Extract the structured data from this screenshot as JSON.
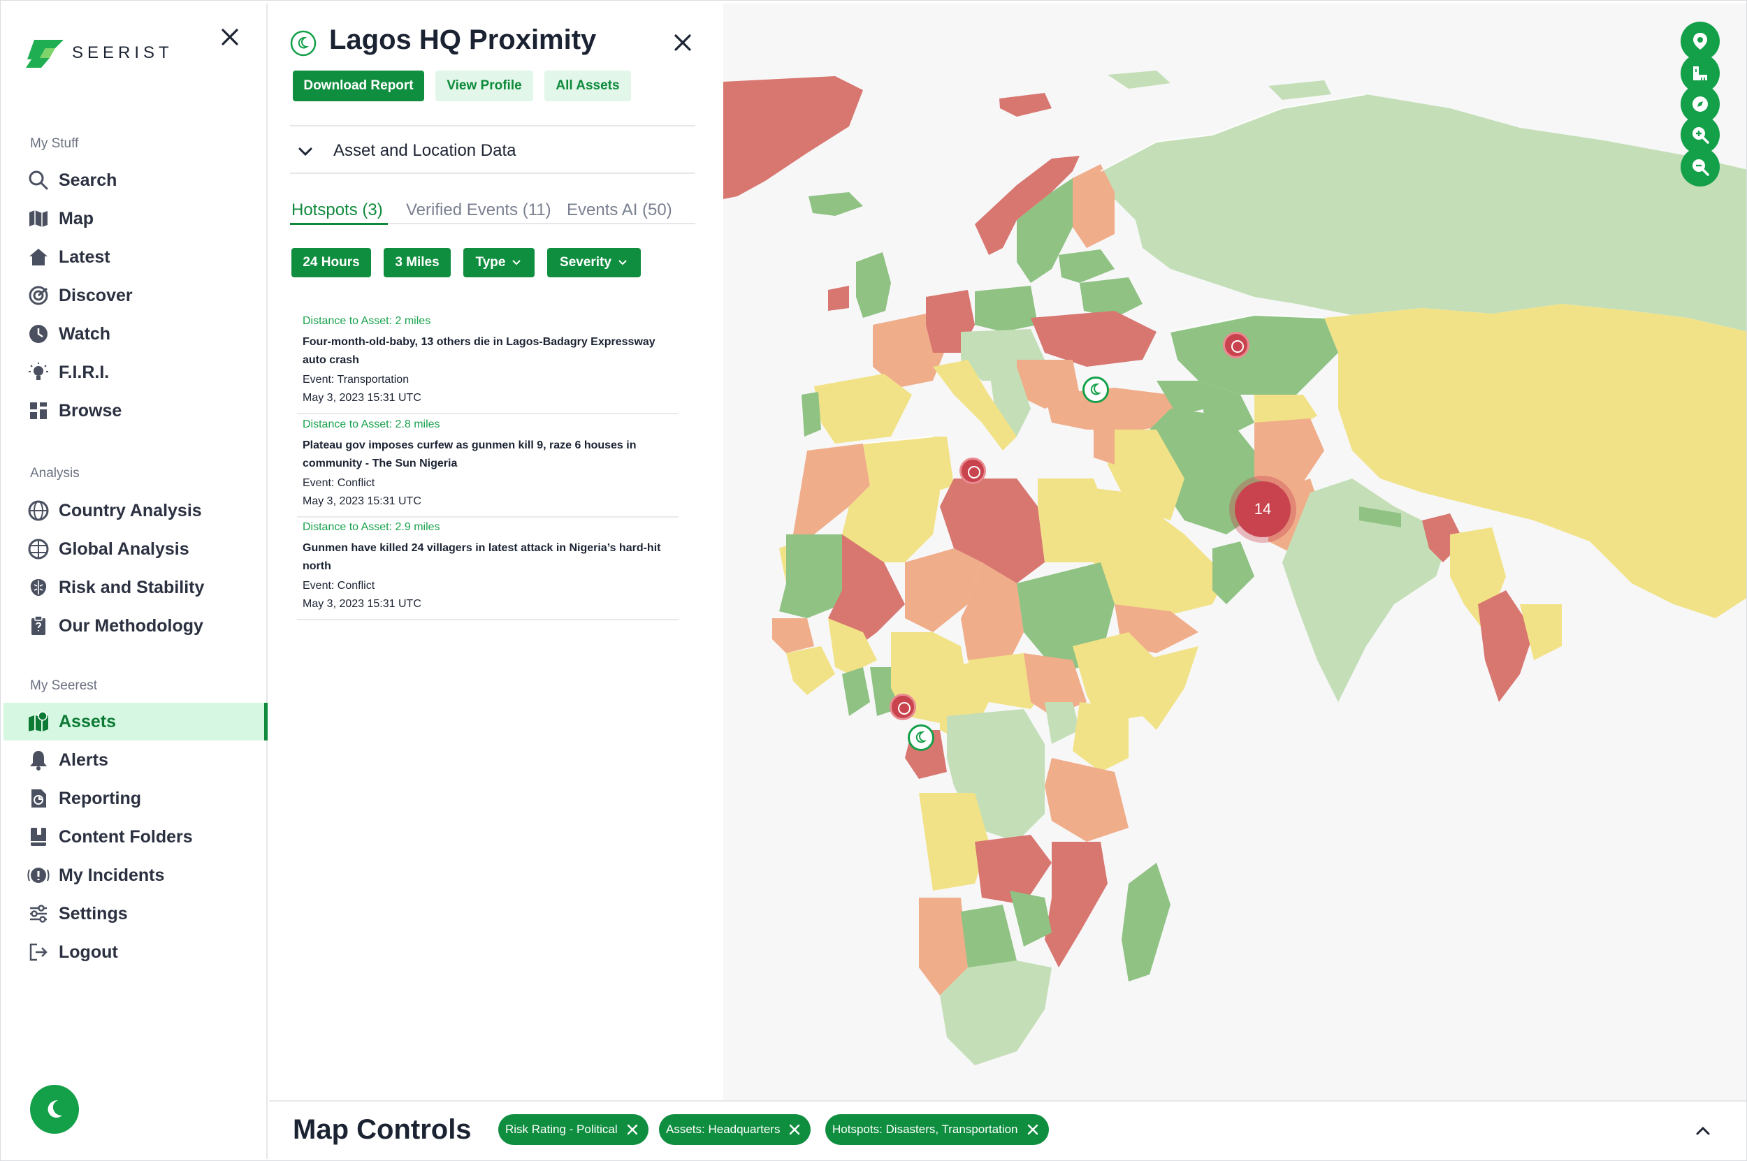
{
  "brand": {
    "name": "SEERIST",
    "accent": "#0f8e3f"
  },
  "sidebar": {
    "sections": [
      {
        "title": "My Stuff",
        "items": [
          {
            "label": "Search",
            "icon": "search-icon"
          },
          {
            "label": "Map",
            "icon": "map-icon"
          },
          {
            "label": "Latest",
            "icon": "home-icon"
          },
          {
            "label": "Discover",
            "icon": "target-icon"
          },
          {
            "label": "Watch",
            "icon": "watch-icon"
          },
          {
            "label": "F.I.R.I.",
            "icon": "lightbulb-icon"
          },
          {
            "label": "Browse",
            "icon": "browse-icon"
          }
        ]
      },
      {
        "title": "Analysis",
        "items": [
          {
            "label": "Country Analysis",
            "icon": "globe-icon"
          },
          {
            "label": "Global Analysis",
            "icon": "globe-grid-icon"
          },
          {
            "label": "Risk and Stability",
            "icon": "brain-icon"
          },
          {
            "label": "Our Methodology",
            "icon": "clipboard-icon"
          }
        ]
      },
      {
        "title": "My Seerest",
        "items": [
          {
            "label": "Assets",
            "icon": "assets-map-icon",
            "active": true
          },
          {
            "label": "Alerts",
            "icon": "bell-icon"
          },
          {
            "label": "Reporting",
            "icon": "report-icon"
          },
          {
            "label": "Content Folders",
            "icon": "folder-book-icon"
          },
          {
            "label": "My Incidents",
            "icon": "incident-icon"
          },
          {
            "label": "Settings",
            "icon": "sliders-icon"
          },
          {
            "label": "Logout",
            "icon": "logout-icon"
          }
        ]
      }
    ]
  },
  "panel": {
    "title": "Lagos HQ Proximity",
    "buttons": {
      "download": "Download Report",
      "profile": "View Profile",
      "assets": "All Assets"
    },
    "accordion": "Asset and Location Data",
    "tabs": [
      "Hotspots (3)",
      "Verified Events (11)",
      "Events AI (50)"
    ],
    "filters": {
      "time": "24 Hours",
      "distance": "3 Miles",
      "type": "Type",
      "severity": "Severity"
    },
    "hotspots": [
      {
        "distance": "Distance to Asset: 2 miles",
        "headline": "Four-month-old-baby, 13 others die in Lagos-Badagry Expressway auto crash",
        "event": "Event: Transportation",
        "date": "May 3, 2023 15:31 UTC"
      },
      {
        "distance": "Distance to Asset: 2.8 miles",
        "headline": "Plateau gov imposes curfew as gunmen kill 9, raze 6 houses in community - The Sun Nigeria",
        "event": "Event: Conflict",
        "date": "May 3, 2023 15:31 UTC"
      },
      {
        "distance": "Distance to Asset: 2.9 miles",
        "headline": "Gunmen have killed 24 villagers in latest attack in Nigeria’s hard-hit north",
        "event": "Event: Conflict",
        "date": "May 3, 2023 15:31 UTC"
      }
    ]
  },
  "map": {
    "cluster_count": "14",
    "risk_colors": {
      "high": "#d87670",
      "elevated": "#f0ad8a",
      "moderate": "#f2e287",
      "low": "#8fc283",
      "minimal": "#c4dfb7"
    },
    "controls": [
      "location-pin-icon",
      "ruler-icon",
      "compass-icon",
      "zoom-in-icon",
      "zoom-out-icon"
    ]
  },
  "bottom": {
    "title": "Map Controls",
    "chips": [
      "Risk Rating - Political",
      "Assets: Headquarters",
      "Hotspots: Disasters, Transportation"
    ]
  }
}
